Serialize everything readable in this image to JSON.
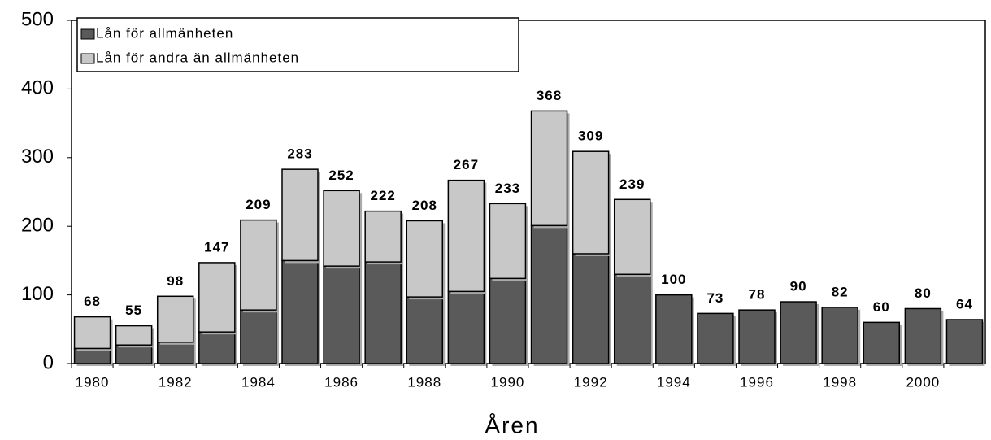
{
  "chart_data": {
    "type": "stacked_bar",
    "x_label": "Åren",
    "categories": [
      "1980",
      null,
      "1982",
      null,
      "1984",
      null,
      "1986",
      null,
      "1988",
      null,
      "1990",
      null,
      "1992",
      null,
      "1994",
      null,
      "1996",
      null,
      "1998",
      null,
      "2000",
      null
    ],
    "series": [
      {
        "name": "Lån för allmänheten",
        "color": "#5a5a5a",
        "values": [
          22,
          27,
          31,
          46,
          78,
          150,
          142,
          148,
          97,
          105,
          124,
          201,
          160,
          130,
          100,
          73,
          78,
          90,
          82,
          60,
          80,
          64
        ]
      },
      {
        "name": "Lån för andra än allmänheten",
        "color": "#c8c8c8",
        "values": [
          46,
          28,
          67,
          101,
          131,
          133,
          110,
          74,
          111,
          162,
          109,
          167,
          149,
          109,
          0,
          0,
          0,
          0,
          0,
          0,
          0,
          0
        ]
      }
    ],
    "totals": [
      68,
      55,
      98,
      147,
      209,
      283,
      252,
      222,
      208,
      267,
      233,
      368,
      309,
      239,
      100,
      73,
      78,
      90,
      82,
      60,
      80,
      64
    ],
    "ylim": [
      0,
      500
    ],
    "yticks": [
      0,
      100,
      200,
      300,
      400,
      500
    ],
    "grid": false
  }
}
